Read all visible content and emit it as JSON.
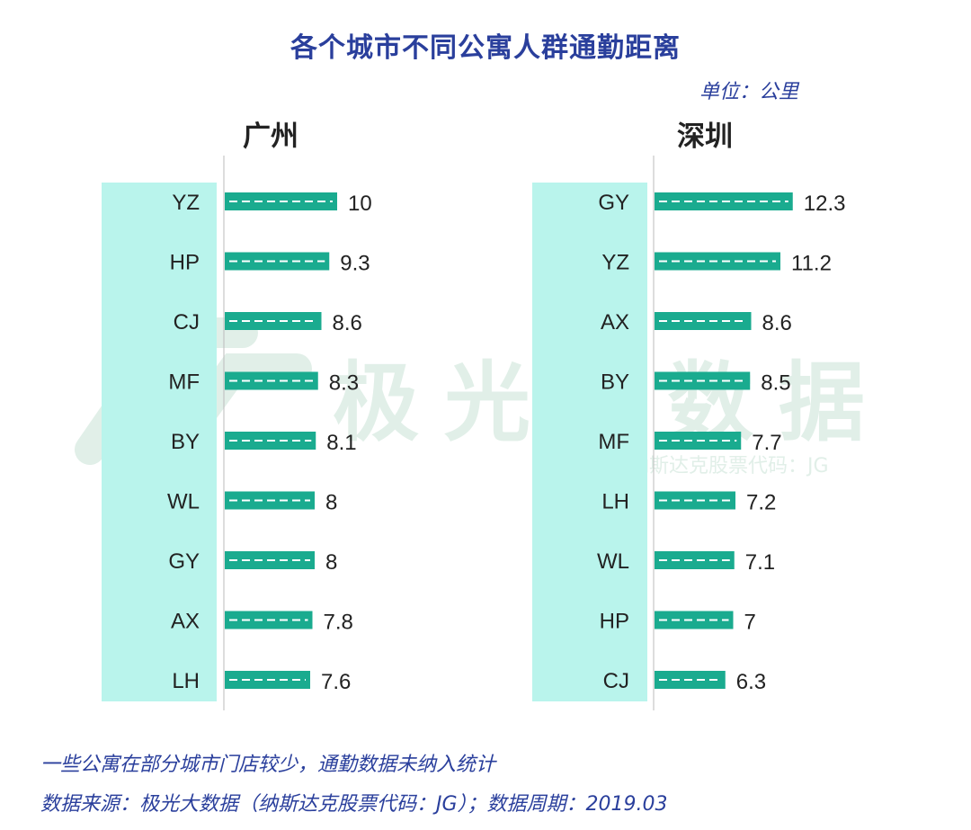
{
  "title": "各个城市不同公寓人群通勤距离",
  "unit": "单位：公里",
  "watermark": {
    "text": "极光大数据",
    "sub": "纳斯达克股票代码：JG"
  },
  "colors": {
    "bar": "#1aab8f",
    "band": "#b9f4ec",
    "title": "#2a3f9c",
    "watermark": "#e1efe8"
  },
  "chart_data": [
    {
      "type": "bar",
      "orientation": "horizontal",
      "title": "广州",
      "categories": [
        "YZ",
        "HP",
        "CJ",
        "MF",
        "BY",
        "WL",
        "GY",
        "AX",
        "LH"
      ],
      "values": [
        10,
        9.3,
        8.6,
        8.3,
        8.1,
        8,
        8,
        7.8,
        7.6
      ],
      "value_labels": [
        "10",
        "9.3",
        "8.6",
        "8.3",
        "8.1",
        "8",
        "8",
        "7.8",
        "7.6"
      ],
      "xlim": [
        0,
        12.3
      ],
      "grid": false
    },
    {
      "type": "bar",
      "orientation": "horizontal",
      "title": "深圳",
      "categories": [
        "GY",
        "YZ",
        "AX",
        "BY",
        "MF",
        "LH",
        "WL",
        "HP",
        "CJ"
      ],
      "values": [
        12.3,
        11.2,
        8.6,
        8.5,
        7.7,
        7.2,
        7.1,
        7,
        6.3
      ],
      "value_labels": [
        "12.3",
        "11.2",
        "8.6",
        "8.5",
        "7.7",
        "7.2",
        "7.1",
        "7",
        "6.3"
      ],
      "xlim": [
        0,
        12.3
      ],
      "grid": false
    }
  ],
  "footer": {
    "note": "一些公寓在部分城市门店较少，通勤数据未纳入统计",
    "source": "数据来源：极光大数据（纳斯达克股票代码：JG）；数据周期：2019.03"
  }
}
